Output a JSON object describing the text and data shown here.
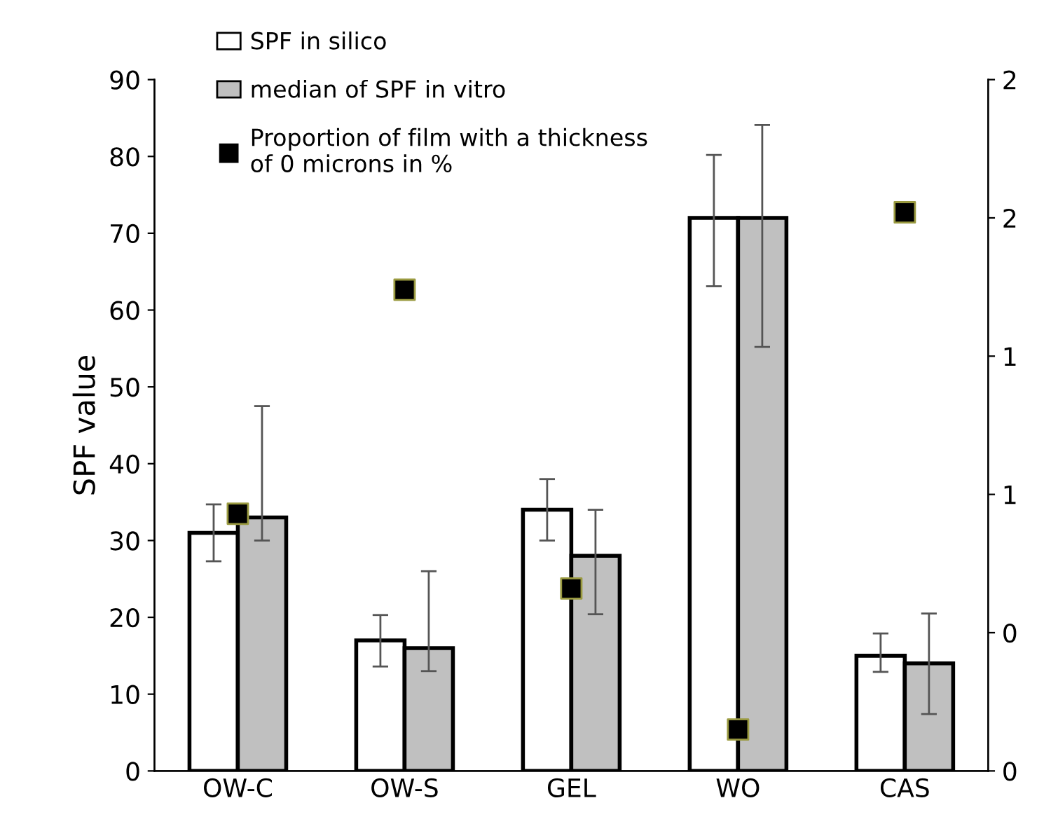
{
  "chart_data": {
    "type": "bar",
    "ylabel": "SPF value",
    "categories": [
      "OW-C",
      "OW-S",
      "GEL",
      "WO",
      "CAS"
    ],
    "series": [
      {
        "name": "SPF in silico",
        "color": "#ffffff",
        "values": [
          31,
          17,
          34,
          72,
          15
        ],
        "errors": [
          [
            27.3,
            34.7
          ],
          [
            13.6,
            20.3
          ],
          [
            30,
            38
          ],
          [
            63.1,
            80.2
          ],
          [
            12.9,
            17.9
          ]
        ]
      },
      {
        "name": "median of SPF in vitro",
        "color": "#c0c0c0",
        "values": [
          33,
          16,
          28,
          72,
          14
        ],
        "errors": [
          [
            30,
            47.5
          ],
          [
            13,
            26
          ],
          [
            20.4,
            34
          ],
          [
            55.2,
            84.1
          ],
          [
            7.4,
            20.5
          ]
        ]
      },
      {
        "name": "Proportion of film with a thickness\nof 0 microns in %",
        "type": "scatter",
        "axis": "y2",
        "color": "#000000",
        "marker": "square",
        "values": [
          0.93,
          1.74,
          0.66,
          0.15,
          2.02
        ]
      }
    ],
    "ylim": [
      0,
      90
    ],
    "yticks": [
      0,
      10,
      20,
      30,
      40,
      50,
      60,
      70,
      80,
      90
    ],
    "y2lim": [
      0,
      2.5
    ],
    "y2ticks": [
      {
        "value": 0,
        "label": "0"
      },
      {
        "value": 0.5,
        "label": "0"
      },
      {
        "value": 1,
        "label": "1"
      },
      {
        "value": 1.5,
        "label": "1"
      },
      {
        "value": 2,
        "label": "2"
      },
      {
        "value": 2.5,
        "label": "2"
      }
    ],
    "grid": false,
    "legend": "top left"
  }
}
